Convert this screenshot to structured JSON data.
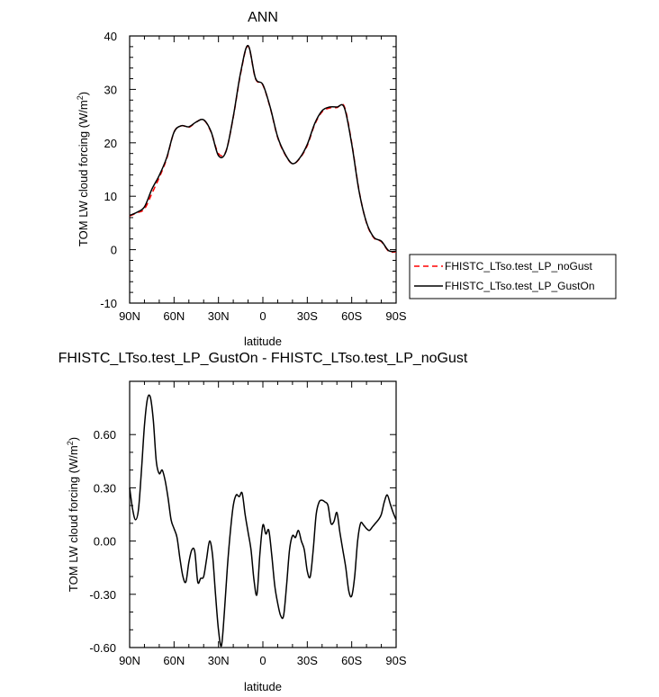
{
  "chart_data": [
    {
      "type": "line",
      "title": "ANN",
      "xlabel": "latitude",
      "ylabel_main": "TOM LW cloud forcing (W/m",
      "ylabel_sup": "2",
      "ylabel_close": ")",
      "xlim": [
        90,
        -90
      ],
      "ylim": [
        -10,
        40
      ],
      "xticks": [
        90,
        60,
        30,
        0,
        -30,
        -60,
        -90
      ],
      "xtick_labels": [
        "90N",
        "60N",
        "30N",
        "0",
        "30S",
        "60S",
        "90S"
      ],
      "yticks": [
        -10,
        0,
        10,
        20,
        30,
        40
      ],
      "ytick_labels": [
        "-10",
        "0",
        "10",
        "20",
        "30",
        "40"
      ],
      "legend_position": "outside-right",
      "series": [
        {
          "name": "FHISTC_LTso.test_LP_noGust",
          "color": "#ff0000",
          "dash": "dashed",
          "x": [
            90,
            85,
            80,
            75,
            70,
            65,
            60,
            55,
            50,
            45,
            40,
            35,
            30,
            25,
            20,
            15,
            10,
            5,
            0,
            -5,
            -10,
            -15,
            -20,
            -25,
            -30,
            -35,
            -40,
            -45,
            -50,
            -55,
            -60,
            -65,
            -70,
            -75,
            -80,
            -85,
            -90
          ],
          "y": [
            6.3,
            6.9,
            7.6,
            10.5,
            13.5,
            17.0,
            22.0,
            23.2,
            22.9,
            23.9,
            24.3,
            22.0,
            18.0,
            18.4,
            24.8,
            33.0,
            38.1,
            32.0,
            30.8,
            26.5,
            21.0,
            17.8,
            16.1,
            17.1,
            19.5,
            23.4,
            25.8,
            26.5,
            26.6,
            26.8,
            20.0,
            11.0,
            5.0,
            2.2,
            1.5,
            -0.3,
            -0.4
          ]
        },
        {
          "name": "FHISTC_LTso.test_LP_GustOn",
          "color": "#000000",
          "dash": "solid",
          "x": [
            90,
            85,
            80,
            75,
            70,
            65,
            60,
            55,
            50,
            45,
            40,
            35,
            30,
            25,
            20,
            15,
            10,
            5,
            0,
            -5,
            -10,
            -15,
            -20,
            -25,
            -30,
            -35,
            -40,
            -45,
            -50,
            -55,
            -60,
            -65,
            -70,
            -75,
            -80,
            -85,
            -90
          ],
          "y": [
            6.4,
            7.0,
            8.0,
            11.3,
            13.9,
            17.2,
            22.0,
            23.2,
            23.0,
            23.9,
            24.3,
            22.1,
            17.6,
            18.3,
            24.9,
            33.2,
            38.2,
            32.1,
            30.9,
            26.6,
            21.1,
            17.9,
            16.1,
            17.2,
            19.7,
            23.6,
            26.0,
            26.7,
            26.7,
            26.6,
            19.8,
            10.9,
            5.1,
            2.3,
            1.6,
            -0.2,
            -0.3
          ]
        }
      ]
    },
    {
      "type": "line",
      "title": "FHISTC_LTso.test_LP_GustOn - FHISTC_LTso.test_LP_noGust",
      "xlabel": "latitude",
      "ylabel_main": "TOM LW cloud forcing (W/m",
      "ylabel_sup": "2",
      "ylabel_close": ")",
      "xlim": [
        90,
        -90
      ],
      "ylim": [
        -0.6,
        0.9
      ],
      "xticks": [
        90,
        60,
        30,
        0,
        -30,
        -60,
        -90
      ],
      "xtick_labels": [
        "90N",
        "60N",
        "30N",
        "0",
        "30S",
        "60S",
        "90S"
      ],
      "yticks": [
        -0.6,
        -0.3,
        0.0,
        0.3,
        0.6
      ],
      "ytick_labels": [
        "-0.60",
        "-0.30",
        "0.00",
        "0.30",
        "0.60"
      ],
      "series": [
        {
          "name": "FHISTC_LTso.test_LP_GustOn - FHISTC_LTso.test_LP_noGust",
          "color": "#000000",
          "dash": "solid",
          "x": [
            90,
            88,
            86,
            84,
            82,
            80,
            78,
            76,
            74,
            72,
            70,
            68,
            66,
            64,
            62,
            60,
            58,
            56,
            54,
            52,
            50,
            48,
            46,
            44,
            42,
            40,
            38,
            36,
            34,
            32,
            30,
            28,
            26,
            24,
            22,
            20,
            18,
            16,
            14,
            12,
            10,
            8,
            6,
            4,
            2,
            0,
            -2,
            -4,
            -6,
            -8,
            -10,
            -12,
            -14,
            -16,
            -18,
            -20,
            -22,
            -24,
            -26,
            -28,
            -30,
            -32,
            -34,
            -36,
            -38,
            -40,
            -42,
            -44,
            -46,
            -48,
            -50,
            -52,
            -54,
            -56,
            -58,
            -60,
            -62,
            -64,
            -66,
            -68,
            -70,
            -72,
            -74,
            -76,
            -78,
            -80,
            -82,
            -84,
            -86,
            -88,
            -90
          ],
          "y": [
            0.3,
            0.18,
            0.12,
            0.18,
            0.4,
            0.65,
            0.8,
            0.81,
            0.68,
            0.45,
            0.38,
            0.4,
            0.34,
            0.24,
            0.12,
            0.07,
            0.02,
            -0.1,
            -0.2,
            -0.23,
            -0.12,
            -0.05,
            -0.06,
            -0.23,
            -0.21,
            -0.2,
            -0.1,
            0.0,
            -0.08,
            -0.3,
            -0.5,
            -0.59,
            -0.4,
            -0.15,
            0.05,
            0.2,
            0.26,
            0.25,
            0.27,
            0.15,
            0.05,
            -0.05,
            -0.22,
            -0.3,
            -0.07,
            0.09,
            0.04,
            0.06,
            -0.08,
            -0.25,
            -0.35,
            -0.42,
            -0.42,
            -0.25,
            -0.05,
            0.03,
            0.02,
            0.06,
            0.0,
            -0.05,
            -0.17,
            -0.2,
            -0.05,
            0.15,
            0.22,
            0.23,
            0.22,
            0.2,
            0.1,
            0.11,
            0.16,
            0.05,
            -0.05,
            -0.15,
            -0.28,
            -0.31,
            -0.2,
            0.0,
            0.1,
            0.09,
            0.07,
            0.06,
            0.08,
            0.1,
            0.12,
            0.15,
            0.22,
            0.26,
            0.21,
            0.16,
            0.12
          ]
        }
      ]
    }
  ]
}
